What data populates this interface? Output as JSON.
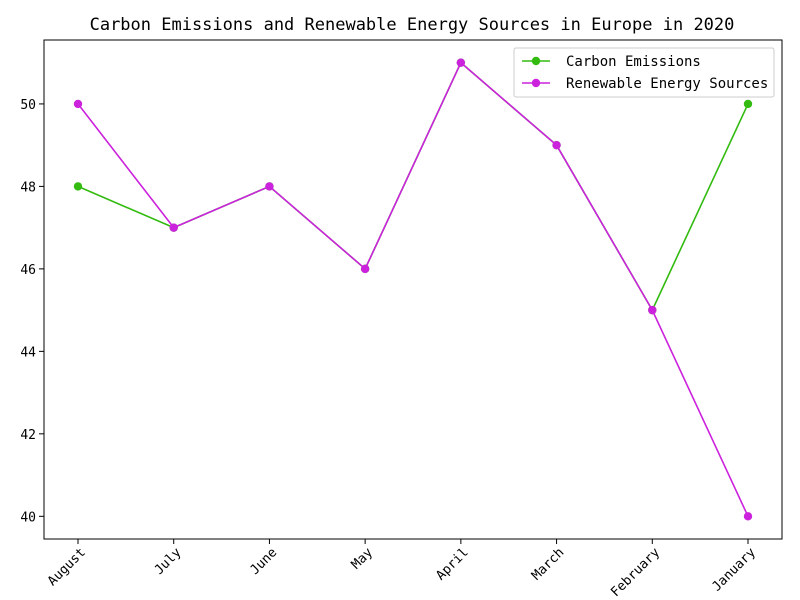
{
  "chart_data": {
    "type": "line",
    "title": "Carbon Emissions and Renewable Energy Sources in Europe in 2020",
    "xlabel": "",
    "ylabel": "",
    "categories": [
      "August",
      "July",
      "June",
      "May",
      "April",
      "March",
      "February",
      "January"
    ],
    "series": [
      {
        "name": "Carbon Emissions",
        "color": "#33bb11",
        "values": [
          48,
          47,
          48,
          46,
          51,
          49,
          45,
          50
        ]
      },
      {
        "name": "Renewable Energy Sources",
        "color": "#cc22dd",
        "values": [
          50,
          47,
          48,
          46,
          51,
          49,
          45,
          40
        ]
      }
    ],
    "ylim": [
      39.45,
      51.55
    ],
    "yticks": [
      40,
      42,
      44,
      46,
      48,
      50
    ],
    "grid": false,
    "legend_position": "top-right",
    "marker": "circle"
  }
}
